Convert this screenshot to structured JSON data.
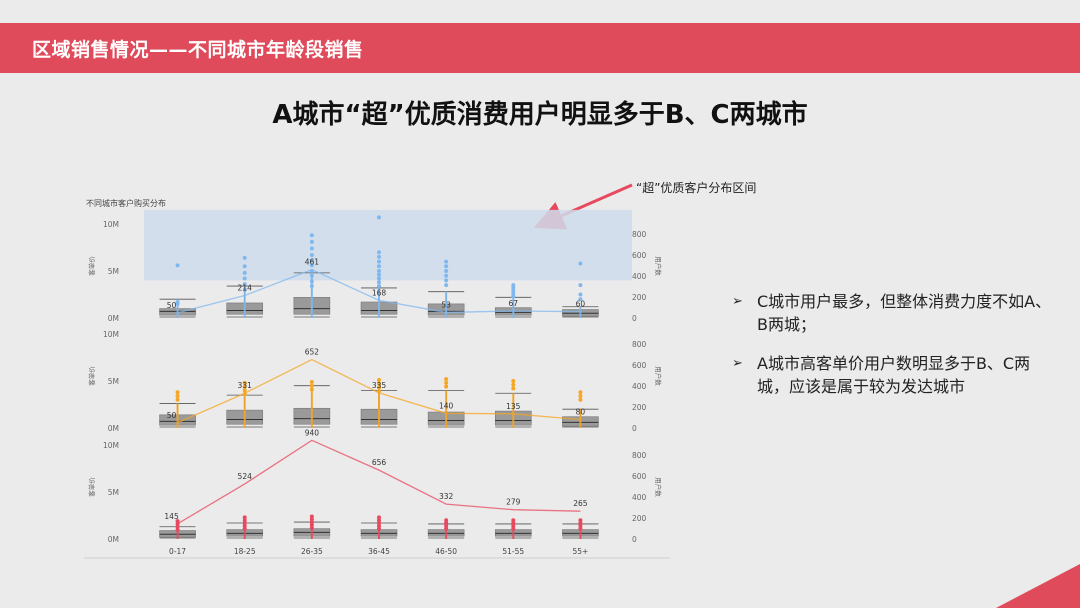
{
  "header": {
    "title": "区域销售情况——不同城市年龄段销售"
  },
  "heading": "A城市“超”优质消费用户明显多于B、C两城市",
  "annotation": "“超”优质客户分布区间",
  "bullets": [
    "C城市用户最多，但整体消费力度不如A、B两城；",
    "A城市高客单价用户数明显多于B、C两城，应该是属于较为发达城市"
  ],
  "colors": {
    "accent": "#e04b5c",
    "A": "#7fb8ef",
    "B": "#f5a623",
    "C": "#e8495f"
  },
  "chart_data": {
    "type": "box+line",
    "title": "不同城市客户购买分布",
    "categories": [
      "0-17",
      "18-25",
      "26-35",
      "36-45",
      "46-50",
      "51-55",
      "55+"
    ],
    "left_axis_label": "客单价",
    "right_axis_label": "用户数",
    "left_ticks": [
      "0M",
      "5M",
      "10M"
    ],
    "right_ticks": [
      "0",
      "200",
      "400",
      "600",
      "800"
    ],
    "left_range": [
      0,
      10000000
    ],
    "right_range": [
      0,
      800
    ],
    "highlight_range": [
      4000000,
      11500000
    ],
    "panels": [
      {
        "color": "#7fb8ef",
        "users": [
          50,
          214,
          461,
          168,
          53,
          67,
          60
        ],
        "user_labels": [
          "50",
          "214",
          "461",
          "168",
          "53",
          "67",
          "60"
        ],
        "outliers": [
          [
            5600000,
            1500000,
            1700000
          ],
          [
            6400000,
            5500000,
            4800000,
            4200000,
            3600000,
            3000000
          ],
          [
            8800000,
            8100000,
            7400000,
            6700000,
            6100000,
            5600000,
            5000000,
            4500000,
            3900000,
            3400000
          ],
          [
            10700000,
            7000000,
            6500000,
            6000000,
            5500000,
            5000000,
            4600000,
            4200000,
            3800000,
            3400000
          ],
          [
            6000000,
            5500000,
            5000000,
            4500000,
            4000000,
            3500000
          ],
          [
            3500000,
            3200000,
            2900000,
            2600000,
            2300000
          ],
          [
            5800000,
            3500000,
            2500000,
            2000000
          ]
        ],
        "boxes": [
          {
            "q1": 300000,
            "med": 700000,
            "q3": 1000000,
            "whisker": 2000000
          },
          {
            "q1": 400000,
            "med": 800000,
            "q3": 1600000,
            "whisker": 3400000
          },
          {
            "q1": 400000,
            "med": 1000000,
            "q3": 2200000,
            "whisker": 4800000
          },
          {
            "q1": 400000,
            "med": 800000,
            "q3": 1700000,
            "whisker": 3200000
          },
          {
            "q1": 300000,
            "med": 700000,
            "q3": 1500000,
            "whisker": 2800000
          },
          {
            "q1": 300000,
            "med": 600000,
            "q3": 1100000,
            "whisker": 2200000
          },
          {
            "q1": 200000,
            "med": 500000,
            "q3": 900000,
            "whisker": 1200000
          }
        ]
      },
      {
        "color": "#f5a623",
        "users": [
          50,
          331,
          652,
          335,
          140,
          135,
          80
        ],
        "user_labels": [
          "50",
          "331",
          "652",
          "335",
          "140",
          "135",
          "80"
        ],
        "outliers": [
          [
            3800000,
            3400000,
            3000000
          ],
          [
            4800000,
            4400000,
            4000000,
            3600000
          ],
          [
            4900000,
            4500000,
            4100000
          ],
          [
            5100000,
            4700000,
            4300000,
            3900000
          ],
          [
            5200000,
            4800000,
            4400000
          ],
          [
            5000000,
            4600000,
            4200000
          ],
          [
            3800000,
            3400000,
            3000000
          ]
        ],
        "boxes": [
          {
            "q1": 300000,
            "med": 700000,
            "q3": 1400000,
            "whisker": 2600000
          },
          {
            "q1": 400000,
            "med": 900000,
            "q3": 1900000,
            "whisker": 3500000
          },
          {
            "q1": 400000,
            "med": 1000000,
            "q3": 2100000,
            "whisker": 4500000
          },
          {
            "q1": 400000,
            "med": 900000,
            "q3": 2000000,
            "whisker": 4000000
          },
          {
            "q1": 300000,
            "med": 800000,
            "q3": 1700000,
            "whisker": 4000000
          },
          {
            "q1": 300000,
            "med": 800000,
            "q3": 1800000,
            "whisker": 3700000
          },
          {
            "q1": 200000,
            "med": 600000,
            "q3": 1200000,
            "whisker": 2000000
          }
        ]
      },
      {
        "color": "#e8495f",
        "users": [
          145,
          524,
          940,
          656,
          332,
          279,
          265
        ],
        "user_labels": [
          "145",
          "524",
          "940",
          "656",
          "332",
          "279",
          "265"
        ],
        "outliers": [
          [
            1900000,
            1600000,
            1300000,
            1000000
          ],
          [
            2300000,
            2000000,
            1700000,
            1400000,
            1100000
          ],
          [
            2400000,
            2100000,
            1800000,
            1500000,
            1200000
          ],
          [
            2300000,
            2000000,
            1700000,
            1400000,
            1100000
          ],
          [
            2000000,
            1700000,
            1400000,
            1100000
          ],
          [
            2000000,
            1700000,
            1400000,
            1100000
          ],
          [
            2000000,
            1700000,
            1400000,
            1100000
          ]
        ],
        "boxes": [
          {
            "q1": 200000,
            "med": 500000,
            "q3": 900000,
            "whisker": 1300000
          },
          {
            "q1": 300000,
            "med": 600000,
            "q3": 1000000,
            "whisker": 1700000
          },
          {
            "q1": 300000,
            "med": 700000,
            "q3": 1100000,
            "whisker": 1800000
          },
          {
            "q1": 300000,
            "med": 600000,
            "q3": 1000000,
            "whisker": 1700000
          },
          {
            "q1": 300000,
            "med": 600000,
            "q3": 1000000,
            "whisker": 1600000
          },
          {
            "q1": 300000,
            "med": 600000,
            "q3": 1000000,
            "whisker": 1600000
          },
          {
            "q1": 300000,
            "med": 600000,
            "q3": 1000000,
            "whisker": 1600000
          }
        ]
      }
    ]
  }
}
